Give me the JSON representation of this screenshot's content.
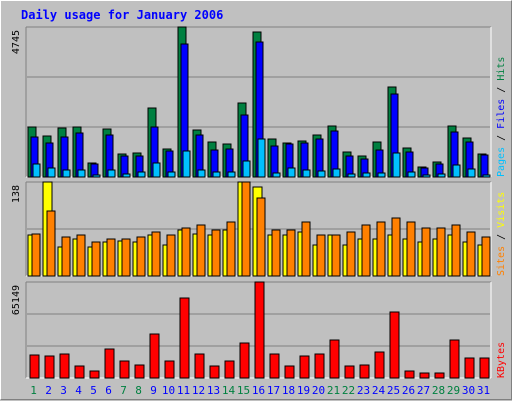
{
  "title": "Daily usage for January 2006",
  "colors": {
    "hits": "#008040",
    "files": "#0000ff",
    "pages": "#00c0ff",
    "visits": "#ffff00",
    "sites": "#ff8000",
    "kbytes": "#ff0000",
    "weekend_day": "#008040",
    "weekday": "#0000ff"
  },
  "chart_data": [
    {
      "type": "bar",
      "name": "hits-files-pages",
      "ymax_label": "4745",
      "ylim": [
        0,
        4745
      ],
      "legend": [
        "Pages",
        "Files",
        "Hits"
      ],
      "categories": [
        "1",
        "2",
        "3",
        "4",
        "5",
        "6",
        "7",
        "8",
        "9",
        "10",
        "11",
        "12",
        "13",
        "14",
        "15",
        "16",
        "17",
        "18",
        "19",
        "20",
        "21",
        "22",
        "23",
        "24",
        "25",
        "26",
        "27",
        "28",
        "29",
        "30",
        "31"
      ],
      "series": [
        {
          "name": "Hits",
          "values": [
            1580,
            1300,
            1560,
            1580,
            450,
            1520,
            740,
            760,
            2170,
            900,
            4745,
            1480,
            1120,
            1050,
            2330,
            4600,
            1200,
            1090,
            1140,
            1340,
            1600,
            780,
            680,
            1120,
            2840,
            920,
            330,
            470,
            1600,
            1230,
            720
          ]
        },
        {
          "name": "Files",
          "values": [
            1280,
            1080,
            1250,
            1390,
            400,
            1320,
            660,
            660,
            1580,
            820,
            4200,
            1330,
            850,
            880,
            1970,
            4260,
            980,
            1050,
            1090,
            1200,
            1440,
            650,
            570,
            860,
            2640,
            800,
            290,
            400,
            1430,
            1120,
            690
          ]
        },
        {
          "name": "Pages",
          "values": [
            400,
            290,
            220,
            220,
            60,
            220,
            90,
            160,
            450,
            160,
            820,
            220,
            150,
            150,
            500,
            1200,
            130,
            270,
            220,
            190,
            250,
            90,
            120,
            120,
            750,
            150,
            60,
            100,
            380,
            260,
            60
          ]
        }
      ]
    },
    {
      "type": "bar",
      "name": "visits-sites",
      "ymax_label": "138",
      "ylim": [
        0,
        138
      ],
      "legend": [
        "Sites",
        "Visits"
      ],
      "categories": [
        "1",
        "2",
        "3",
        "4",
        "5",
        "6",
        "7",
        "8",
        "9",
        "10",
        "11",
        "12",
        "13",
        "14",
        "15",
        "16",
        "17",
        "18",
        "19",
        "20",
        "21",
        "22",
        "23",
        "24",
        "25",
        "26",
        "27",
        "28",
        "29",
        "30",
        "31"
      ],
      "series": [
        {
          "name": "Visits",
          "values": [
            60,
            138,
            42,
            55,
            42,
            50,
            52,
            50,
            60,
            45,
            68,
            62,
            60,
            68,
            138,
            130,
            60,
            60,
            65,
            45,
            60,
            45,
            55,
            55,
            60,
            55,
            50,
            55,
            60,
            50,
            45
          ]
        },
        {
          "name": "Sites",
          "values": [
            62,
            95,
            57,
            60,
            50,
            55,
            55,
            57,
            65,
            60,
            70,
            75,
            68,
            80,
            138,
            115,
            68,
            68,
            80,
            60,
            60,
            65,
            75,
            80,
            85,
            80,
            70,
            70,
            75,
            65,
            57
          ]
        }
      ]
    },
    {
      "type": "bar",
      "name": "kbytes",
      "ymax_label": "65149",
      "ylim": [
        0,
        65149
      ],
      "legend": [
        "KBytes"
      ],
      "categories": [
        "1",
        "2",
        "3",
        "4",
        "5",
        "6",
        "7",
        "8",
        "9",
        "10",
        "11",
        "12",
        "13",
        "14",
        "15",
        "16",
        "17",
        "18",
        "19",
        "20",
        "21",
        "22",
        "23",
        "24",
        "25",
        "26",
        "27",
        "28",
        "29",
        "30",
        "31"
      ],
      "series": [
        {
          "name": "KBytes",
          "values": [
            15800,
            14700,
            16500,
            8200,
            4900,
            19400,
            11500,
            9000,
            29600,
            11500,
            54300,
            16500,
            7900,
            11500,
            23900,
            65149,
            16500,
            8200,
            14700,
            16500,
            25500,
            7900,
            9000,
            17400,
            45000,
            4900,
            3300,
            3300,
            25500,
            13900,
            13900
          ]
        }
      ]
    }
  ],
  "x_axis": {
    "days": [
      "1",
      "2",
      "3",
      "4",
      "5",
      "6",
      "7",
      "8",
      "9",
      "10",
      "11",
      "12",
      "13",
      "14",
      "15",
      "16",
      "17",
      "18",
      "19",
      "20",
      "21",
      "22",
      "23",
      "24",
      "25",
      "26",
      "27",
      "28",
      "29",
      "30",
      "31"
    ],
    "weekend": [
      1,
      7,
      8,
      14,
      15,
      21,
      22,
      28,
      29
    ]
  }
}
